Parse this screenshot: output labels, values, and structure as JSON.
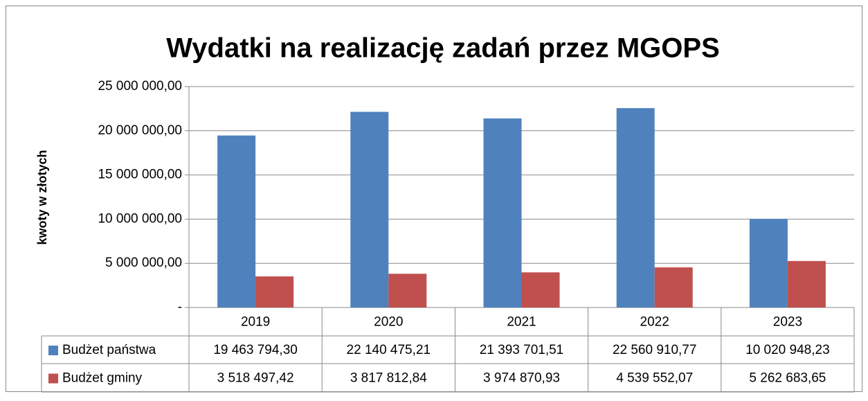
{
  "chart_data": {
    "type": "bar",
    "title": "Wydatki na realizację zadań przez MGOPS",
    "ylabel": "kwoty w złotych",
    "categories": [
      "2019",
      "2020",
      "2021",
      "2022",
      "2023"
    ],
    "series": [
      {
        "name": "Budżet państwa",
        "color": "#4f81bd",
        "values": [
          19463794.3,
          22140475.21,
          21393701.51,
          22560910.77,
          10020948.23
        ],
        "value_labels": [
          "19 463 794,30",
          "22 140 475,21",
          "21 393 701,51",
          "22 560 910,77",
          "10 020 948,23"
        ]
      },
      {
        "name": "Budżet gminy",
        "color": "#c0504d",
        "values": [
          3518497.42,
          3817812.84,
          3974870.93,
          4539552.07,
          5262683.65
        ],
        "value_labels": [
          "3 518 497,42",
          "3 817 812,84",
          "3 974 870,93",
          "4 539 552,07",
          "5 262 683,65"
        ]
      }
    ],
    "ylim": [
      0,
      25000000
    ],
    "yticks": [
      {
        "value": 0,
        "label": "-"
      },
      {
        "value": 5000000,
        "label": "5 000 000,00"
      },
      {
        "value": 10000000,
        "label": "10 000 000,00"
      },
      {
        "value": 15000000,
        "label": "15 000 000,00"
      },
      {
        "value": 20000000,
        "label": "20 000 000,00"
      },
      {
        "value": 25000000,
        "label": "25 000 000,00"
      }
    ],
    "grid": true,
    "legend": "table"
  }
}
